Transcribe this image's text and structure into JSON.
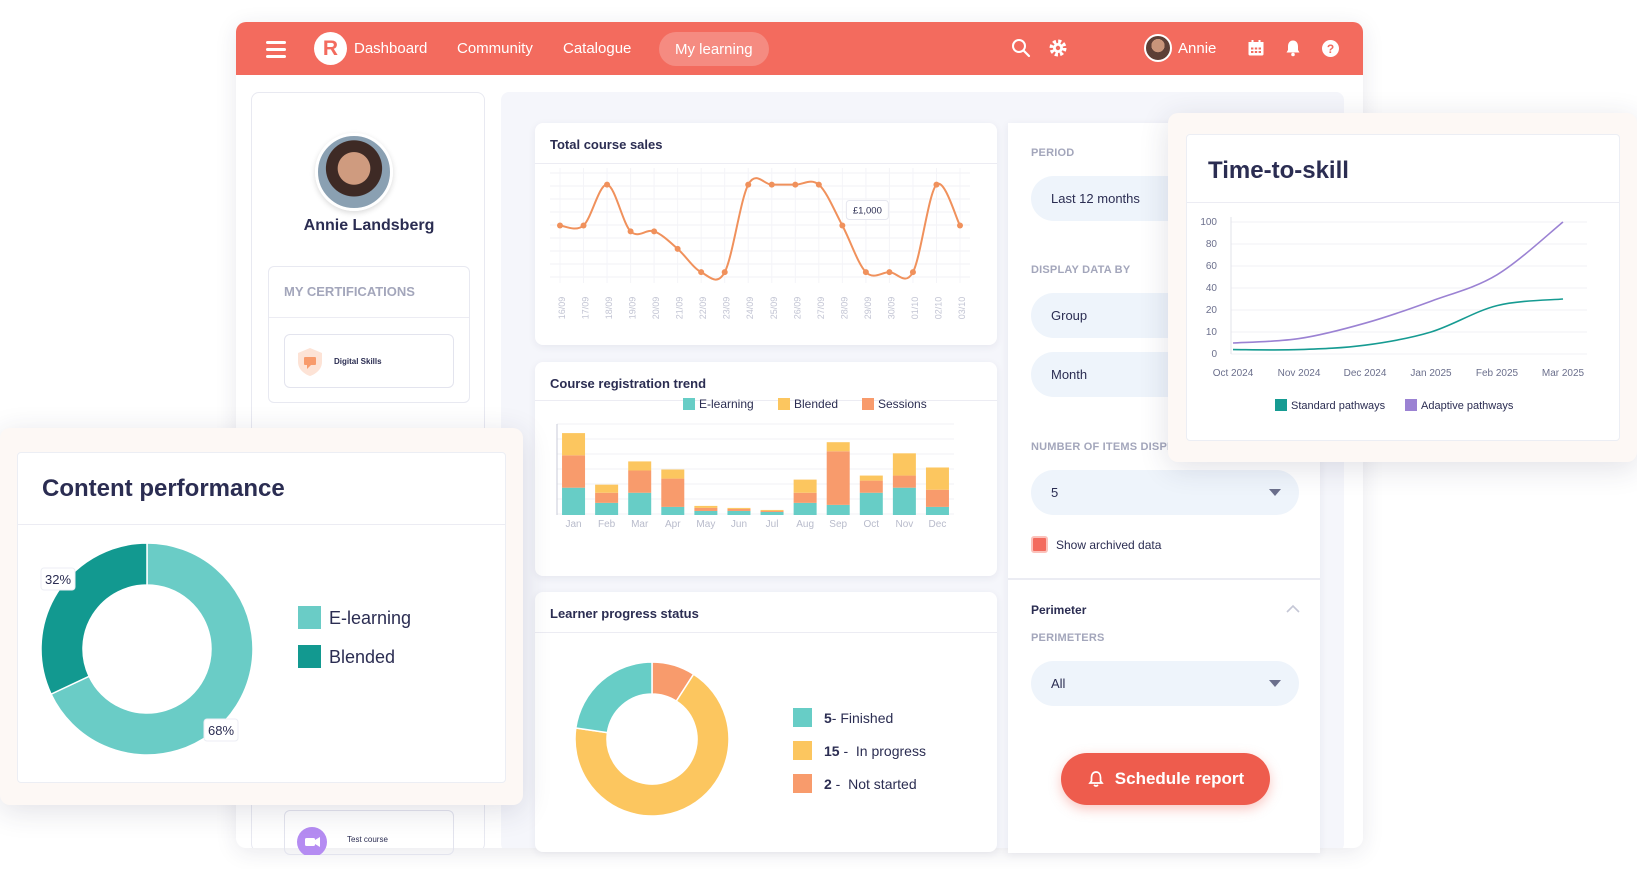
{
  "topbar": {
    "nav": [
      "Dashboard",
      "Community",
      "Catalogue",
      "My learning"
    ],
    "active": "My learning",
    "user": "Annie",
    "accent": "#f36b5e"
  },
  "profile": {
    "name": "Annie Landsberg",
    "certifications_title": "MY CERTIFICATIONS",
    "cert_item": "Digital Skills",
    "course_item": "Test course"
  },
  "total_sales": {
    "title": "Total course sales",
    "tooltip": "£1,000"
  },
  "registration": {
    "title": "Course registration trend"
  },
  "progress": {
    "title": "Learner progress status",
    "items": [
      {
        "count": "5",
        "label": " - Finished"
      },
      {
        "count": "15",
        "label": " -  In progress"
      },
      {
        "count": "2",
        "label": " -  Not started"
      }
    ]
  },
  "filters": {
    "period_label": "PERIOD",
    "period_value": "Last 12 months",
    "display_label": "DISPLAY DATA BY",
    "display_value_1": "Group",
    "display_value_2": "Month",
    "items_label": "NUMBER OF ITEMS DISPLAYED",
    "items_value": "5",
    "archived_label": "Show archived data",
    "perimeter_title": "Perimeter",
    "perimeters_label": "PERIMETERS",
    "perimeters_value": "All",
    "schedule_button": "Schedule report"
  },
  "time_to_skill": {
    "title": "Time-to-skill"
  },
  "content_performance": {
    "title": "Content performance"
  },
  "chart_data": [
    {
      "type": "line",
      "title": "Total course sales",
      "categories": [
        "16/09",
        "17/09",
        "18/09",
        "19/09",
        "20/09",
        "21/09",
        "22/09",
        "23/09",
        "24/09",
        "25/09",
        "26/09",
        "27/09",
        "28/09",
        "29/09",
        "30/09",
        "01/10",
        "02/10",
        "03/10"
      ],
      "values": [
        600,
        600,
        1300,
        500,
        500,
        200,
        -200,
        -200,
        1300,
        1300,
        1300,
        1300,
        600,
        -200,
        -200,
        -200,
        1300,
        600
      ],
      "ylim": [
        -300,
        1500
      ],
      "annotation": "£1,000",
      "color": "#f0915c",
      "grid": true
    },
    {
      "type": "bar",
      "title": "Course registration trend",
      "stacked": true,
      "categories": [
        "Jan",
        "Feb",
        "Mar",
        "Apr",
        "May",
        "Jun",
        "Jul",
        "Aug",
        "Sep",
        "Oct",
        "Nov",
        "Dec"
      ],
      "series": [
        {
          "name": "E-learning",
          "color": "#67cdc6",
          "values": [
            27,
            12,
            22,
            8,
            4,
            4,
            3,
            12,
            10,
            22,
            27,
            8
          ]
        },
        {
          "name": "Sessions",
          "color": "#f89b6c",
          "values": [
            32,
            10,
            22,
            28,
            3,
            2,
            1,
            10,
            53,
            12,
            12,
            17
          ]
        },
        {
          "name": "Blended",
          "color": "#fcc65f",
          "values": [
            22,
            8,
            9,
            9,
            2,
            1,
            1,
            13,
            9,
            5,
            22,
            22
          ]
        }
      ],
      "legend": [
        "E-learning",
        "Blended",
        "Sessions"
      ],
      "legend_colors": [
        "#67cdc6",
        "#fcc65f",
        "#f89b6c"
      ],
      "ylim": [
        0,
        90
      ],
      "legend_position": "top-right"
    },
    {
      "type": "pie",
      "title": "Learner progress status",
      "donut": true,
      "labels": [
        "Finished",
        "In progress",
        "Not started"
      ],
      "values": [
        5,
        15,
        2
      ],
      "order": [
        [
          "Not started",
          2,
          "#f89b6c"
        ],
        [
          "In progress",
          15,
          "#fcc65f"
        ],
        [
          "Finished",
          5,
          "#67cdc6"
        ]
      ],
      "colors": [
        "#67cdc6",
        "#fcc65f",
        "#f89b6c"
      ]
    },
    {
      "type": "line",
      "title": "Time-to-skill",
      "categories": [
        "Oct 2024",
        "Nov 2024",
        "Dec 2024",
        "Jan 2025",
        "Feb 2025",
        "Mar 2025"
      ],
      "yticks": [
        0,
        10,
        20,
        40,
        60,
        80,
        100
      ],
      "series": [
        {
          "name": "Standard pathways",
          "color": "#169b92",
          "values": [
            2,
            2,
            4,
            10,
            24,
            30
          ]
        },
        {
          "name": "Adaptive pathways",
          "color": "#9b82d3",
          "values": [
            5,
            7,
            14,
            28,
            52,
            100
          ]
        }
      ],
      "legend_position": "bottom"
    },
    {
      "type": "pie",
      "title": "Content performance",
      "donut": true,
      "labels": [
        "E-learning",
        "Blended"
      ],
      "values": [
        68,
        32
      ],
      "value_labels": [
        "68%",
        "32%"
      ],
      "colors": [
        "#6accc6",
        "#129990"
      ]
    }
  ]
}
